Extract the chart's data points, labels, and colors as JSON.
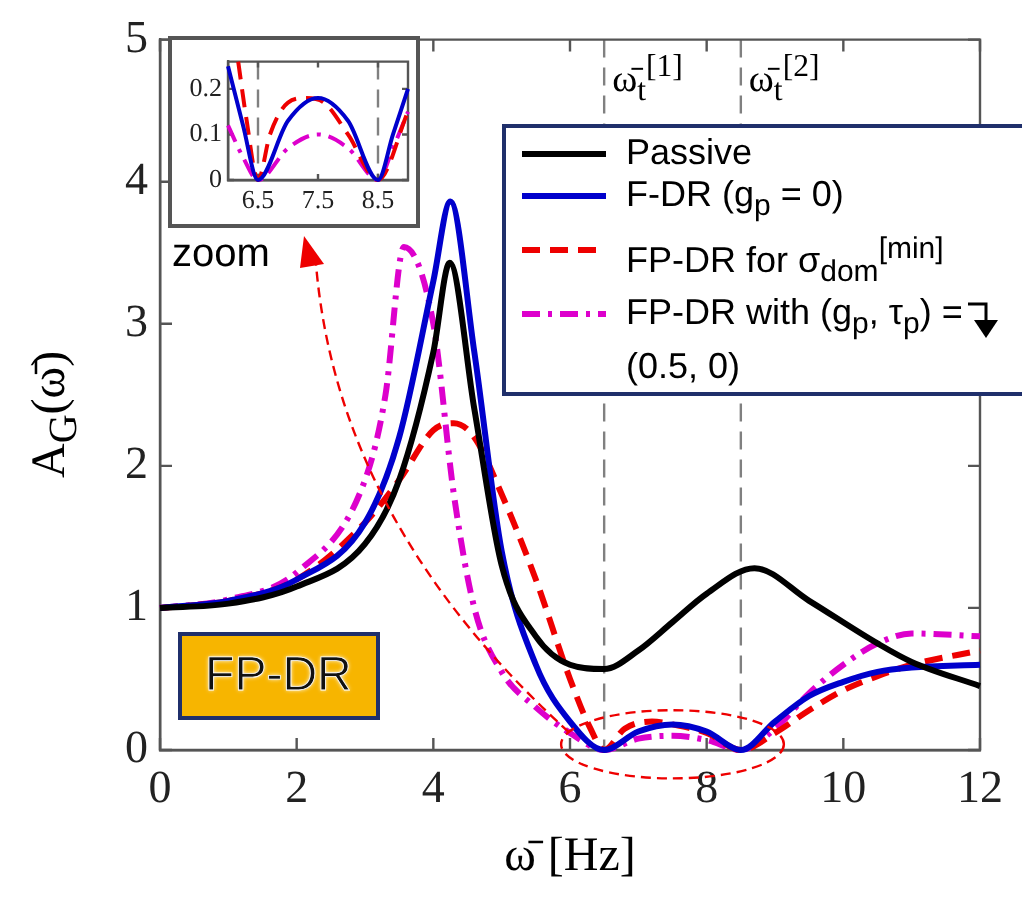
{
  "chart_data": [
    {
      "type": "line",
      "xlabel": "ω̄ [Hz]",
      "ylabel": "A$_{G}$(ω̄)",
      "xlim": [
        0,
        12
      ],
      "ylim": [
        0,
        5
      ],
      "xticks": [
        0,
        2,
        4,
        6,
        8,
        10,
        12
      ],
      "yticks": [
        0,
        1,
        2,
        3,
        4,
        5
      ],
      "grid": false,
      "legend": "top right",
      "series": [
        {
          "name": "Passive",
          "color": "#000000",
          "line_style": "solid",
          "x": [
            0,
            1,
            2,
            3,
            3.5,
            4,
            4.24,
            4.6,
            5,
            5.5,
            6,
            6.5,
            7,
            7.5,
            8,
            8.7,
            9.5,
            10.5,
            11,
            12
          ],
          "values": [
            1,
            1.03,
            1.15,
            1.45,
            1.9,
            2.8,
            3.43,
            2.4,
            1.3,
            0.8,
            0.6,
            0.57,
            0.7,
            0.9,
            1.1,
            1.28,
            1.05,
            0.75,
            0.62,
            0.45
          ]
        },
        {
          "name": "F-DR (g$_{p}$ = 0)",
          "color": "#0000cc",
          "line_style": "solid",
          "x": [
            0,
            1,
            2,
            3,
            3.5,
            4,
            4.25,
            4.6,
            5,
            5.5,
            6,
            6.5,
            7,
            7.5,
            8,
            8.5,
            9,
            9.5,
            10,
            10.5,
            11,
            12
          ],
          "values": [
            1,
            1.05,
            1.2,
            1.6,
            2.2,
            3.3,
            3.86,
            2.8,
            1.4,
            0.6,
            0.2,
            0,
            0.13,
            0.18,
            0.13,
            0,
            0.2,
            0.38,
            0.48,
            0.55,
            0.58,
            0.6
          ]
        },
        {
          "name": "FP-DR for σ$_{dom}$$^{[min]}$",
          "color": "#ee0000",
          "line_style": "dashed",
          "x": [
            0,
            1,
            2,
            3,
            3.5,
            4,
            4.3,
            4.6,
            5,
            5.5,
            6,
            6.3,
            6.5,
            6.8,
            7.2,
            7.5,
            8,
            8.5,
            9,
            9.5,
            10,
            10.5,
            11,
            12
          ],
          "values": [
            1,
            1.05,
            1.2,
            1.6,
            1.9,
            2.25,
            2.3,
            2.2,
            1.8,
            1.2,
            0.5,
            0.15,
            0,
            0.15,
            0.2,
            0.18,
            0.12,
            0,
            0.12,
            0.28,
            0.42,
            0.52,
            0.6,
            0.7
          ]
        },
        {
          "name": "FP-DR with (g$_{p}$, τ$_{p}$) = (0.5, 0)",
          "color": "#dd00cc",
          "line_style": "dashdot",
          "x": [
            0,
            1,
            2,
            3,
            3.3,
            3.57,
            4,
            4.3,
            4.6,
            5,
            5.5,
            6,
            6.5,
            7,
            7.5,
            8,
            8.5,
            9,
            9.5,
            10,
            10.5,
            11,
            12
          ],
          "values": [
            1,
            1.06,
            1.25,
            1.9,
            2.5,
            3.54,
            3.0,
            1.8,
            1.0,
            0.55,
            0.3,
            0.12,
            0,
            0.08,
            0.1,
            0.07,
            0,
            0.15,
            0.4,
            0.6,
            0.75,
            0.82,
            0.8
          ]
        }
      ],
      "ref_lines": [
        {
          "axis": "x",
          "value": 6.5,
          "label": "ω̄$_{t}$$^{[1]}$",
          "color": "#808080",
          "line_style": "dashed"
        },
        {
          "axis": "x",
          "value": 8.5,
          "label": "ω̄$_{t}$$^{[2]}$",
          "color": "#808080",
          "line_style": "dashed"
        }
      ],
      "annotations": [
        "zoom",
        "FP-DR"
      ]
    },
    {
      "type": "line",
      "xlim": [
        6,
        9
      ],
      "ylim": [
        0,
        0.26
      ],
      "xticks": [
        6.5,
        7.5,
        8.5
      ],
      "yticks": [
        0,
        0.1,
        0.2
      ],
      "grid": false,
      "series": [
        {
          "color": "#0000cc",
          "line_style": "solid",
          "x": [
            6,
            6.25,
            6.5,
            7,
            7.5,
            8,
            8.5,
            8.75,
            9
          ],
          "values": [
            0.25,
            0.12,
            0,
            0.13,
            0.18,
            0.13,
            0,
            0.1,
            0.2
          ]
        },
        {
          "color": "#ee0000",
          "line_style": "dashed",
          "x": [
            6.17,
            6.3,
            6.5,
            6.7,
            7,
            7.3,
            7.6,
            8,
            8.5,
            9
          ],
          "values": [
            0.26,
            0.14,
            0,
            0.1,
            0.17,
            0.18,
            0.17,
            0.1,
            0,
            0.15
          ]
        },
        {
          "color": "#dd00cc",
          "line_style": "dashdot",
          "x": [
            6,
            6.25,
            6.5,
            7,
            7.5,
            8,
            8.5,
            8.75,
            9
          ],
          "values": [
            0.12,
            0.05,
            0,
            0.07,
            0.1,
            0.07,
            0,
            0.07,
            0.15
          ]
        }
      ],
      "ref_lines": [
        {
          "axis": "x",
          "value": 6.5,
          "color": "#808080",
          "line_style": "dashed"
        },
        {
          "axis": "x",
          "value": 8.5,
          "color": "#808080",
          "line_style": "dashed"
        }
      ]
    }
  ]
}
